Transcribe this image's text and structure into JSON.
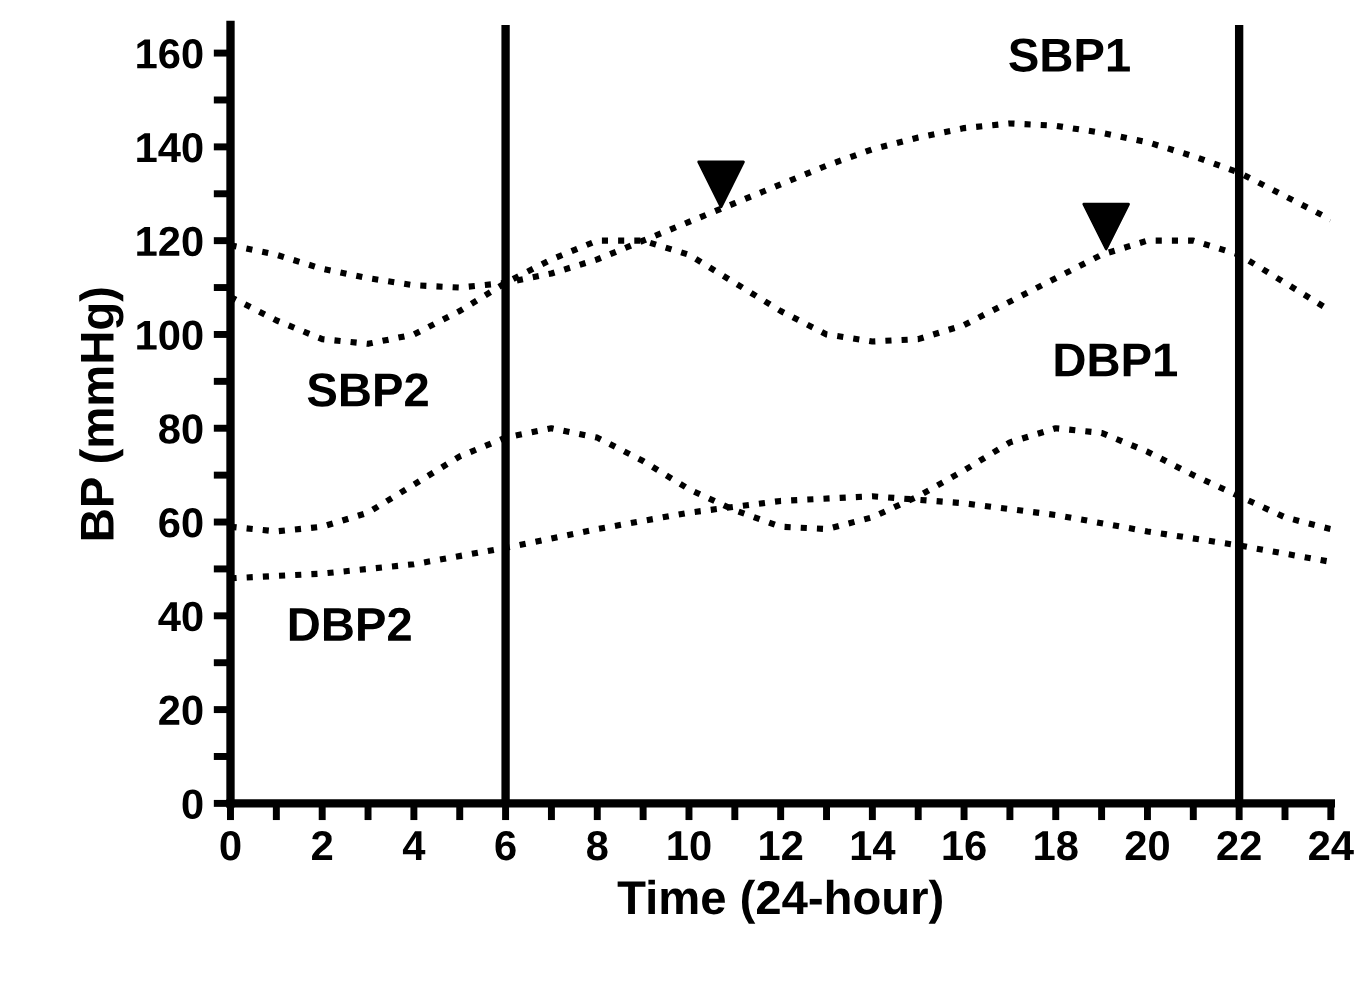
{
  "chart_data": {
    "type": "line",
    "xlabel": "Time (24-hour)",
    "ylabel": "BP (mmHg)",
    "xlim": [
      0,
      24
    ],
    "ylim": [
      0,
      166
    ],
    "xticks": [
      0,
      {
        "value": 1,
        "label": null
      },
      2,
      {
        "value": 3,
        "label": null
      },
      4,
      {
        "value": 5,
        "label": null
      },
      6,
      {
        "value": 7,
        "label": null
      },
      8,
      {
        "value": 9,
        "label": null
      },
      10,
      {
        "value": 11,
        "label": null
      },
      12,
      {
        "value": 13,
        "label": null
      },
      14,
      {
        "value": 15,
        "label": null
      },
      16,
      {
        "value": 17,
        "label": null
      },
      18,
      {
        "value": 19,
        "label": null
      },
      20,
      {
        "value": 21,
        "label": null
      },
      22,
      {
        "value": 23,
        "label": null
      },
      24
    ],
    "yticks": [
      0,
      {
        "value": 10,
        "label": null
      },
      20,
      {
        "value": 30,
        "label": null
      },
      40,
      {
        "value": 50,
        "label": null
      },
      60,
      {
        "value": 70,
        "label": null
      },
      80,
      {
        "value": 90,
        "label": null
      },
      100,
      {
        "value": 110,
        "label": null
      },
      120,
      {
        "value": 130,
        "label": null
      },
      140,
      {
        "value": 150,
        "label": null
      },
      160
    ],
    "grid": false,
    "legend": false,
    "marker": "none",
    "line_style": "dotted",
    "series": [
      {
        "name": "SBP1",
        "color": "#000000",
        "x": [
          0,
          1,
          2,
          3,
          4,
          5,
          6,
          7,
          8,
          9,
          10,
          11,
          12,
          13,
          14,
          15,
          16,
          17,
          18,
          19,
          20,
          21,
          22,
          23,
          24
        ],
        "values": [
          119,
          117,
          114,
          112,
          110.5,
          110,
          111,
          113,
          116,
          120,
          124,
          128,
          132,
          136,
          139.5,
          142,
          144,
          145,
          144.5,
          143,
          141,
          138,
          134.5,
          129.5,
          124.5
        ]
      },
      {
        "name": "SBP2",
        "color": "#000000",
        "x": [
          0,
          1,
          2,
          3,
          4,
          5,
          6,
          7,
          8,
          9,
          10,
          11,
          12,
          13,
          14,
          15,
          16,
          17,
          18,
          19,
          20,
          21,
          22,
          23,
          24
        ],
        "values": [
          108,
          103,
          99,
          98,
          100,
          105,
          111,
          116,
          120,
          120,
          117,
          111,
          105,
          100,
          98.5,
          99,
          102,
          107,
          112,
          117,
          120,
          120,
          117,
          111,
          105
        ]
      },
      {
        "name": "DBP1",
        "color": "#000000",
        "x": [
          0,
          1,
          2,
          3,
          4,
          5,
          6,
          7,
          8,
          9,
          10,
          11,
          12,
          13,
          14,
          15,
          16,
          17,
          18,
          19,
          20,
          21,
          22,
          23,
          24
        ],
        "values": [
          59,
          58,
          59,
          62,
          68,
          74,
          78,
          80,
          78,
          73,
          67,
          62.5,
          59,
          58.5,
          61,
          65.5,
          71,
          77,
          80,
          79,
          75,
          70,
          65.5,
          61,
          58.5
        ]
      },
      {
        "name": "DBP2",
        "color": "#000000",
        "x": [
          0,
          2,
          4,
          6,
          8,
          10,
          12,
          14,
          16,
          18,
          20,
          22,
          24
        ],
        "values": [
          48,
          49,
          51,
          54.5,
          58.5,
          62,
          64.5,
          65.5,
          64,
          61.5,
          58,
          55,
          51.5
        ]
      },
      {
        "type": "scatter",
        "marker": "triangle",
        "color": "#000000",
        "x": [
          10.7,
          19.1
        ],
        "values": [
          132,
          123
        ]
      }
    ],
    "ref_lines": [
      {
        "axis": "x",
        "value": 6,
        "color": "#000000",
        "line_style": "solid"
      },
      {
        "axis": "x",
        "value": 22,
        "color": "#000000",
        "line_style": "solid"
      }
    ]
  }
}
